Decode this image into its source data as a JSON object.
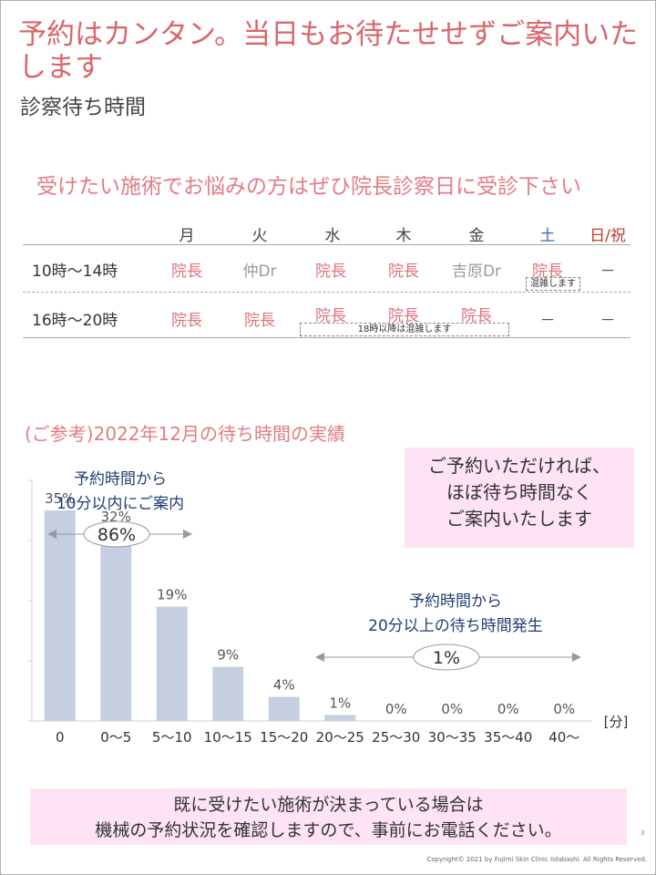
{
  "header": {
    "title": "予約はカンタン。当日もお待たせせずご案内いたします",
    "subtitle": "診察待ち時間"
  },
  "schedule": {
    "heading": "受けたい施術でお悩みの方はぜひ院長診察日に受診下さい",
    "days": [
      "月",
      "火",
      "水",
      "木",
      "金",
      "土",
      "日/祝"
    ],
    "rows": [
      {
        "time": "10時～14時",
        "cells": [
          "院長",
          "仲Dr",
          "院長",
          "院長",
          "吉原Dr",
          "院長",
          "－"
        ]
      },
      {
        "time": "16時～20時",
        "cells": [
          "院長",
          "院長",
          "院長",
          "院長",
          "院長",
          "－",
          "－"
        ]
      }
    ],
    "sat_note": "混雑します",
    "evening_note": "18時以降は混雑します",
    "colors": {
      "doctor_main": "#e0707a",
      "doctor_other": "#9a9a9a",
      "saturday": "#3a6bbd",
      "holiday": "#c0392b"
    }
  },
  "reference_heading": "(ご参考)2022年12月の待ち時間の実績",
  "chart_data": {
    "type": "bar",
    "categories": [
      "0",
      "0～5",
      "5～10",
      "10～15",
      "15～20",
      "20～25",
      "25～30",
      "30～35",
      "35～40",
      "40～"
    ],
    "values": [
      35,
      32,
      19,
      9,
      4,
      1,
      0,
      0,
      0,
      0
    ],
    "value_labels": [
      "35%",
      "32%",
      "19%",
      "9%",
      "4%",
      "1%",
      "0%",
      "0%",
      "0%",
      "0%"
    ],
    "unit_label": "[分]",
    "ylim": [
      0,
      40
    ],
    "bar_color": "#c5cfe1",
    "annotations": [
      {
        "text_line1": "予約時間から",
        "text_line2": "10分以内にご案内",
        "value": "86%"
      },
      {
        "text_line1": "予約時間から",
        "text_line2": "20分以上の待ち時間発生",
        "value": "1%"
      }
    ]
  },
  "callout": {
    "line1": "ご予約いただければ、",
    "line2": "ほぼ待ち時間なく",
    "line3": "ご案内いたします"
  },
  "footer": {
    "line1": "既に受けたい施術が決まっている場合は",
    "line2": "機械の予約状況を確認しますので、事前にお電話ください。",
    "page_number": "3",
    "copyright": "Copyright© 2021 by Fujimi Skin Clinic Iidabashi. All Rights Reserved."
  }
}
